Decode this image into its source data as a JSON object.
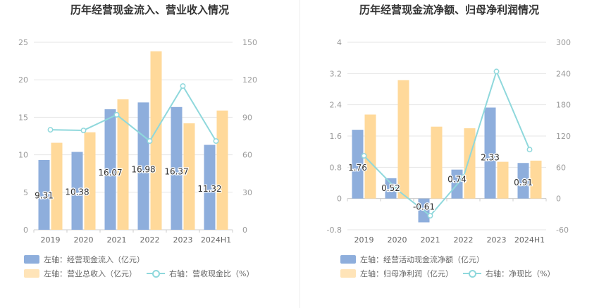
{
  "charts": [
    {
      "title": "历年经营现金流入、营业收入情况",
      "legend": {
        "bar1": "左轴：经营现金流入（亿元）",
        "bar2": "左轴：营业总收入（亿元）",
        "line": "右轴：营收现金比（%）"
      }
    },
    {
      "title": "历年经营现金流净额、归母净利润情况",
      "legend": {
        "bar1": "左轴：经营活动现金流净额（亿元）",
        "bar2": "左轴：归母净利润（亿元）",
        "line": "右轴：净现比（%）"
      }
    }
  ],
  "colors": {
    "bar1": "#8eaedc",
    "bar2": "#ffd99a",
    "line": "#8fd8dc",
    "axis_text": "#999999",
    "grid": "#e6e6e6"
  },
  "chart_data": [
    {
      "type": "bar",
      "categories": [
        "2019",
        "2020",
        "2021",
        "2022",
        "2023",
        "2024H1"
      ],
      "series": [
        {
          "name": "左轴：经营现金流入（亿元）",
          "axis": "left",
          "values": [
            9.31,
            10.38,
            16.07,
            16.98,
            16.37,
            11.32
          ],
          "labels": [
            "9.31",
            "10.38",
            "16.07",
            "16.98",
            "16.37",
            "11.32"
          ]
        },
        {
          "name": "左轴：营业总收入（亿元）",
          "axis": "left",
          "values": [
            11.6,
            13.0,
            17.4,
            23.8,
            14.2,
            15.9
          ]
        },
        {
          "name": "右轴：营收现金比（%）",
          "axis": "right",
          "type": "line",
          "values": [
            80,
            79.5,
            92,
            71,
            115,
            71
          ]
        }
      ],
      "left_axis": {
        "ylim": [
          0,
          25
        ],
        "ticks": [
          "0",
          "5",
          "10",
          "15",
          "20",
          "25"
        ]
      },
      "right_axis": {
        "ylim": [
          0,
          150
        ],
        "ticks": [
          "0",
          "30",
          "60",
          "90",
          "120",
          "150"
        ]
      },
      "grid": true
    },
    {
      "type": "bar",
      "categories": [
        "2019",
        "2020",
        "2021",
        "2022",
        "2023",
        "2024H1"
      ],
      "series": [
        {
          "name": "左轴：经营活动现金流净额（亿元）",
          "axis": "left",
          "values": [
            1.76,
            0.52,
            -0.61,
            0.74,
            2.33,
            0.91
          ],
          "labels": [
            "1.76",
            "0.52",
            "-0.61",
            "0.74",
            "2.33",
            "0.91"
          ]
        },
        {
          "name": "左轴：归母净利润（亿元）",
          "axis": "left",
          "values": [
            2.15,
            3.03,
            1.84,
            1.8,
            0.94,
            0.97
          ]
        },
        {
          "name": "右轴：净现比（%）",
          "axis": "right",
          "type": "line",
          "values": [
            82,
            17,
            -33,
            41,
            244,
            94
          ]
        }
      ],
      "left_axis": {
        "ylim": [
          -0.8,
          4
        ],
        "ticks": [
          "-0.8",
          "0",
          "0.8",
          "1.6",
          "2.4",
          "3.2",
          "4"
        ]
      },
      "right_axis": {
        "ylim": [
          -60,
          300
        ],
        "ticks": [
          "-60",
          "0",
          "60",
          "120",
          "180",
          "240",
          "300"
        ]
      },
      "grid": true
    }
  ]
}
